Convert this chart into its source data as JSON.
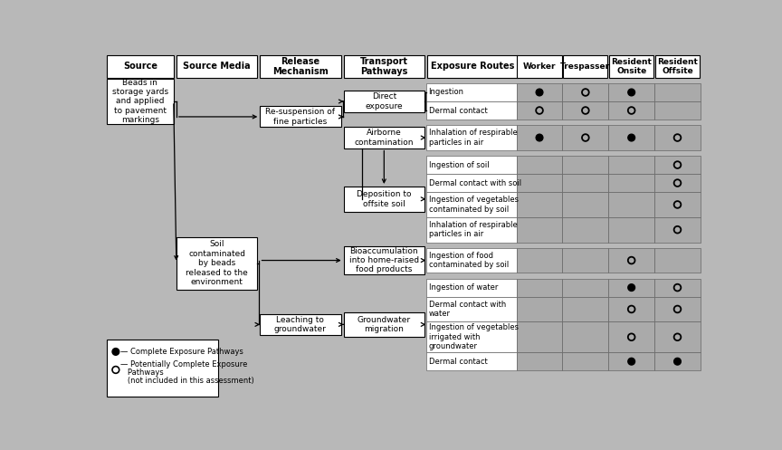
{
  "bg_color": "#b8b8b8",
  "box_color": "#ffffff",
  "box_edge": "#000000",
  "source_text": "Beads in\nstorage yards\nand applied\nto pavement\nmarkings",
  "soil_text": "Soil\ncontaminated\nby beads\nreleased to the\nenvironment",
  "release_boxes": [
    "Re-suspension of\nfine particles",
    "Leaching to\ngroundwater"
  ],
  "transport_boxes": [
    "Direct\nexposure",
    "Airborne\ncontamination",
    "Deposition to\noffsite soil",
    "Bioaccumulation\ninto home-raised\nfood products",
    "Groundwater\nmigration"
  ],
  "header_cols": [
    "Source",
    "Source Media",
    "Release\nMechanism",
    "Transport\nPathways",
    "Exposure Routes"
  ],
  "table_headers": [
    "Worker",
    "Trespasser",
    "Resident\nOnsite",
    "Resident\nOffsite"
  ],
  "exposure_rows": [
    {
      "route": "Ingestion",
      "W": "F",
      "T": "O",
      "ROn": "F",
      "ROff": ""
    },
    {
      "route": "Dermal contact",
      "W": "O",
      "T": "O",
      "ROn": "O",
      "ROff": ""
    },
    {
      "route": "Inhalation of respirable\nparticles in air",
      "W": "F",
      "T": "O",
      "ROn": "F",
      "ROff": "O"
    },
    {
      "route": "Ingestion of soil",
      "W": "",
      "T": "",
      "ROn": "",
      "ROff": "O"
    },
    {
      "route": "Dermal contact with soil",
      "W": "",
      "T": "",
      "ROn": "",
      "ROff": "O"
    },
    {
      "route": "Ingestion of vegetables\ncontaminated by soil",
      "W": "",
      "T": "",
      "ROn": "",
      "ROff": "O"
    },
    {
      "route": "Inhalation of respirable\nparticles in air",
      "W": "",
      "T": "",
      "ROn": "",
      "ROff": "O"
    },
    {
      "route": "Ingestion of food\ncontaminated by soil",
      "W": "",
      "T": "",
      "ROn": "O",
      "ROff": ""
    },
    {
      "route": "Ingestion of water",
      "W": "",
      "T": "",
      "ROn": "F",
      "ROff": "O"
    },
    {
      "route": "Dermal contact with\nwater",
      "W": "",
      "T": "",
      "ROn": "O",
      "ROff": "O"
    },
    {
      "route": "Ingestion of vegetables\nirrigated with\ngroundwater",
      "W": "",
      "T": "",
      "ROn": "O",
      "ROff": "O"
    },
    {
      "route": "Dermal contact",
      "W": "",
      "T": "",
      "ROn": "F",
      "ROff": "F"
    }
  ],
  "legend_filled": "— Complete Exposure Pathways",
  "legend_open_line1": "— Potentially Complete Exposure",
  "legend_open_line2": "   Pathways",
  "legend_open_line3": "   (not included in this assessment)"
}
